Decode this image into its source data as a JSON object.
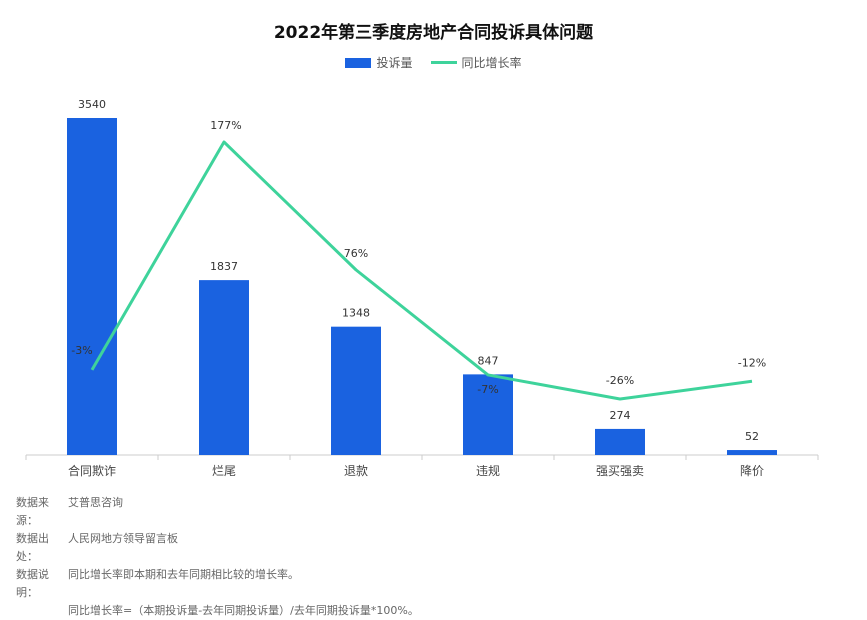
{
  "title": "2022年第三季度房地产合同投诉具体问题",
  "legend": {
    "bar": "投诉量",
    "line": "同比增长率"
  },
  "colors": {
    "bar": "#1a62e0",
    "line": "#3ed39b"
  },
  "chart_data": {
    "type": "bar",
    "categories": [
      "合同欺诈",
      "烂尾",
      "退款",
      "违规",
      "强买强卖",
      "降价"
    ],
    "series": [
      {
        "name": "投诉量",
        "type": "bar",
        "values": [
          3540,
          1837,
          1348,
          847,
          274,
          52
        ]
      },
      {
        "name": "同比增长率",
        "type": "line",
        "values": [
          -3,
          177,
          76,
          -7,
          -26,
          -12
        ],
        "labels": [
          "-3%",
          "177%",
          "76%",
          "-7%",
          "-26%",
          "-12%"
        ]
      }
    ],
    "bar_labels": [
      "3540",
      "1837",
      "1348",
      "847",
      "274",
      "52"
    ],
    "legend_position": "top",
    "grid": false
  },
  "notes": {
    "source_label": "数据来源：",
    "source_value": "艾普思咨询",
    "origin_label": "数据出处：",
    "origin_value": "人民网地方领导留言板",
    "desc_label": "数据说明：",
    "desc_value": "同比增长率即本期和去年同期相比较的增长率。",
    "formula": "同比增长率=（本期投诉量-去年同期投诉量）/去年同期投诉量*100%。"
  }
}
